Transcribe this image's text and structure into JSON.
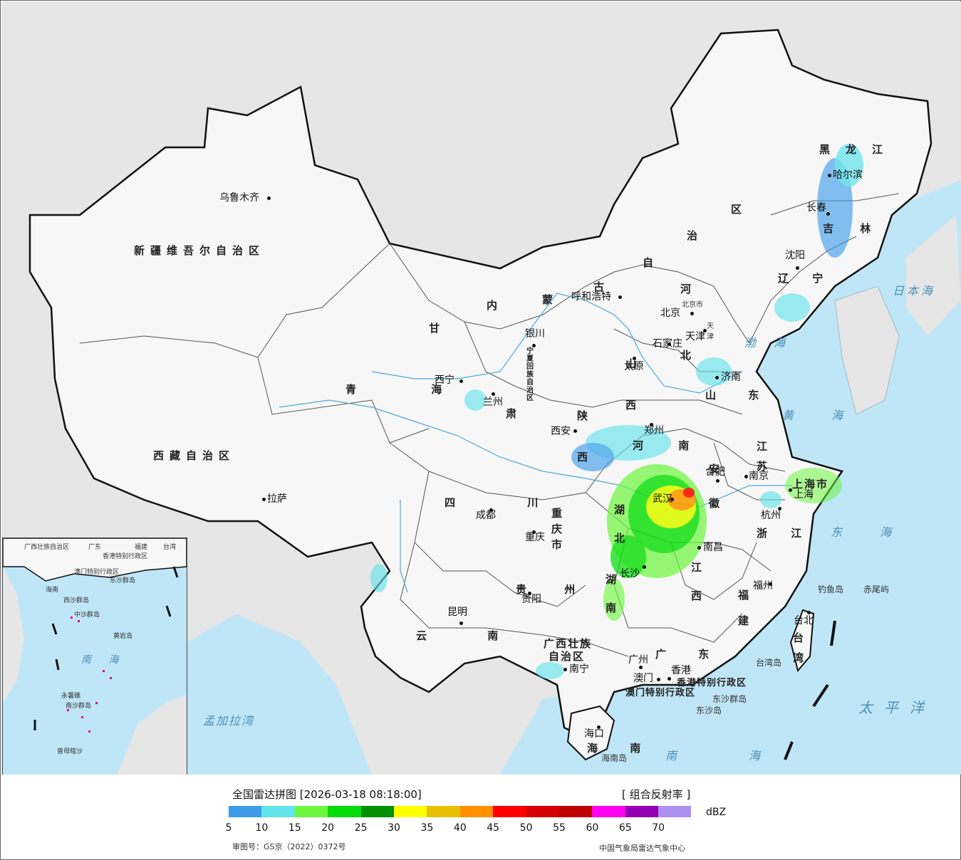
{
  "map": {
    "cities": [
      {
        "name": "乌鲁木齐"
      },
      {
        "name": "拉萨"
      },
      {
        "name": "西宁"
      },
      {
        "name": "兰州"
      },
      {
        "name": "银川"
      },
      {
        "name": "呼和浩特"
      },
      {
        "name": "北京"
      },
      {
        "name": "天津"
      },
      {
        "name": "石家庄"
      },
      {
        "name": "太原"
      },
      {
        "name": "济南"
      },
      {
        "name": "郑州"
      },
      {
        "name": "西安"
      },
      {
        "name": "成都"
      },
      {
        "name": "重庆"
      },
      {
        "name": "贵阳"
      },
      {
        "name": "昆明"
      },
      {
        "name": "南宁"
      },
      {
        "name": "广州"
      },
      {
        "name": "澳门"
      },
      {
        "name": "香港"
      },
      {
        "name": "海口"
      },
      {
        "name": "武汉"
      },
      {
        "name": "长沙"
      },
      {
        "name": "南昌"
      },
      {
        "name": "合肥"
      },
      {
        "name": "南京"
      },
      {
        "name": "上海"
      },
      {
        "name": "杭州"
      },
      {
        "name": "福州"
      },
      {
        "name": "台北"
      },
      {
        "name": "沈阳"
      },
      {
        "name": "长春"
      },
      {
        "name": "哈尔滨"
      }
    ],
    "regions": {
      "xinjiang": "新疆维吾尔自治区",
      "xizang": "西藏自治区",
      "qinghai": "青 海",
      "gansu": "甘",
      "neimenggu_1": "内",
      "neimenggu_2": "蒙",
      "neimenggu_3": "古",
      "neimenggu_4": "自",
      "neimenggu_5": "治",
      "neimenggu_6": "区",
      "heilongjiang": "黑龙江",
      "jilin": "吉 林",
      "liaoning": "辽 宁",
      "hebei_1": "河",
      "hebei_2": "北",
      "shanxi": "山 西",
      "shandong": "山 东",
      "henan": "河 南",
      "shaanxi": "陕 西",
      "ningxia": "宁夏回族自治区",
      "sichuan": "四 川",
      "chongqing": "重庆市",
      "guizhou": "贵 州",
      "yunnan": "云 南",
      "guangxi_1": "广西壮族",
      "guangxi_2": "自治区",
      "guangdong": "广 东",
      "hubei": "湖 北",
      "hunan": "湖 南",
      "jiangxi": "江 西",
      "anhui": "安 徽",
      "jiangsu": "江 苏",
      "zhejiang": "浙 江",
      "fujian": "福 建",
      "taiwan": "台 湾",
      "shanghai": "上海市",
      "hainan": "海 南",
      "hainan_island": "海南岛",
      "gansu_2": "肃",
      "hk_sar": "香港特别行政区",
      "mo_sar": "澳门特别行政区",
      "beijing_city": "北京市",
      "tianjin_city": "天津"
    },
    "seas": {
      "bohai": "渤 海",
      "huanghai": "黄 海",
      "donghai": "东 海",
      "nanhai": "南 海",
      "riben": "日本海",
      "taiping": "太平洋",
      "mengjiala": "孟加拉湾"
    },
    "islands": {
      "diaoyu": "钓鱼岛",
      "chiwei": "赤尾屿",
      "dongsha": "东沙群岛",
      "dongsha_dao": "东沙岛",
      "taiwan_dao": "台湾岛"
    },
    "inset": {
      "nanhai": "南 海",
      "labels": [
        "广西壮族自治区",
        "广东",
        "福建",
        "台湾",
        "香港特别行政区",
        "澳门特别行政区",
        "东沙群岛",
        "海南",
        "西沙群岛",
        "中沙群岛",
        "黄岩岛",
        "永暑礁",
        "南沙群岛",
        "曾母暗沙"
      ]
    }
  },
  "legend": {
    "title": "全国雷达拼图 [2026-03-18 08:18:00]",
    "product": "[ 组合反射率 ]",
    "unit": "dBZ",
    "colors": [
      "#3d9be9",
      "#63e3ea",
      "#6df63e",
      "#05db08",
      "#009100",
      "#ffff00",
      "#e8c000",
      "#ff9000",
      "#ff0000",
      "#d60000",
      "#c00000",
      "#ff00f0",
      "#9600b4",
      "#ad90f0"
    ],
    "ticks": [
      "5",
      "10",
      "15",
      "20",
      "25",
      "30",
      "35",
      "40",
      "45",
      "50",
      "55",
      "60",
      "65",
      "70"
    ],
    "review_no": "审图号：GS京（2022）0372号",
    "org": "中国气象局雷达气象中心"
  }
}
